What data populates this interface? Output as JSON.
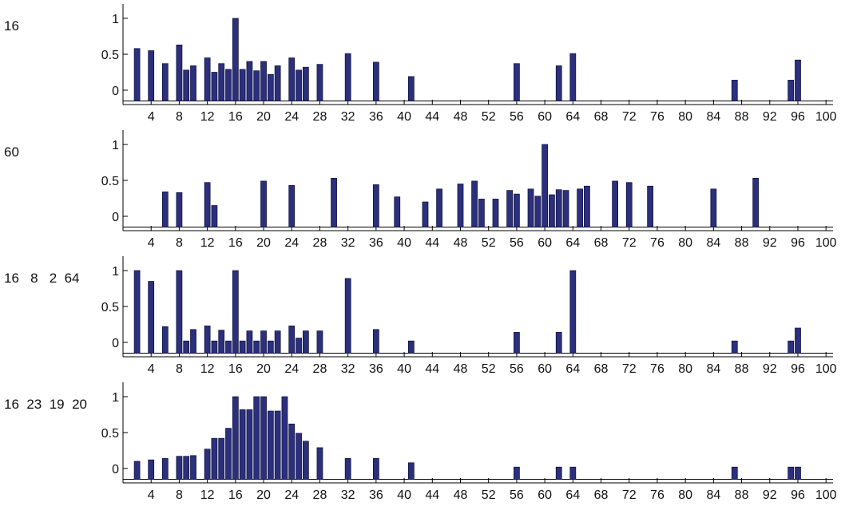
{
  "chart_data": [
    {
      "type": "bar",
      "label": "16",
      "xlim": [
        0,
        101
      ],
      "ylim": [
        -0.2,
        1.2
      ],
      "xticks": [
        4,
        8,
        12,
        16,
        20,
        24,
        28,
        32,
        36,
        40,
        44,
        48,
        52,
        56,
        60,
        64,
        68,
        72,
        76,
        80,
        84,
        88,
        92,
        96,
        100
      ],
      "yticks": [
        0,
        0.5,
        1
      ],
      "ytick_labels": [
        "0",
        "0.5",
        "1"
      ],
      "baseline": -0.15,
      "x": [
        2,
        4,
        6,
        8,
        9,
        10,
        12,
        13,
        14,
        15,
        16,
        17,
        18,
        19,
        20,
        21,
        22,
        24,
        25,
        26,
        28,
        32,
        36,
        41,
        56,
        62,
        64,
        87,
        95,
        96
      ],
      "values": [
        0.58,
        0.55,
        0.37,
        0.63,
        0.28,
        0.34,
        0.45,
        0.25,
        0.37,
        0.29,
        1.0,
        0.29,
        0.4,
        0.27,
        0.4,
        0.22,
        0.34,
        0.45,
        0.28,
        0.32,
        0.36,
        0.51,
        0.39,
        0.19,
        0.37,
        0.34,
        0.51,
        0.14,
        0.14,
        0.42
      ]
    },
    {
      "type": "bar",
      "label": "60",
      "xlim": [
        0,
        101
      ],
      "ylim": [
        -0.2,
        1.2
      ],
      "xticks": [
        4,
        8,
        12,
        16,
        20,
        24,
        28,
        32,
        36,
        40,
        44,
        48,
        52,
        56,
        60,
        64,
        68,
        72,
        76,
        80,
        84,
        88,
        92,
        96,
        100
      ],
      "yticks": [
        0,
        0.5,
        1
      ],
      "ytick_labels": [
        "0",
        "0.5",
        "1"
      ],
      "baseline": -0.15,
      "x": [
        6,
        8,
        12,
        13,
        20,
        24,
        30,
        36,
        39,
        43,
        45,
        48,
        50,
        51,
        53,
        55,
        56,
        58,
        59,
        60,
        61,
        62,
        63,
        65,
        66,
        70,
        72,
        75,
        84,
        90
      ],
      "values": [
        0.34,
        0.33,
        0.47,
        0.15,
        0.49,
        0.43,
        0.53,
        0.44,
        0.27,
        0.2,
        0.38,
        0.45,
        0.49,
        0.24,
        0.24,
        0.36,
        0.31,
        0.38,
        0.28,
        1.0,
        0.3,
        0.37,
        0.36,
        0.38,
        0.42,
        0.49,
        0.47,
        0.42,
        0.38,
        0.53
      ]
    },
    {
      "type": "bar",
      "label": "16   8   2  64",
      "xlim": [
        0,
        101
      ],
      "ylim": [
        -0.2,
        1.2
      ],
      "xticks": [
        4,
        8,
        12,
        16,
        20,
        24,
        28,
        32,
        36,
        40,
        44,
        48,
        52,
        56,
        60,
        64,
        68,
        72,
        76,
        80,
        84,
        88,
        92,
        96,
        100
      ],
      "yticks": [
        0,
        0.5,
        1
      ],
      "ytick_labels": [
        "0",
        "0.5",
        "1"
      ],
      "baseline": -0.15,
      "x": [
        2,
        4,
        6,
        8,
        9,
        10,
        12,
        13,
        14,
        15,
        16,
        17,
        18,
        19,
        20,
        21,
        22,
        24,
        25,
        26,
        28,
        32,
        36,
        41,
        56,
        62,
        64,
        87,
        95,
        96
      ],
      "values": [
        1.0,
        0.85,
        0.22,
        1.0,
        0.02,
        0.18,
        0.23,
        0.02,
        0.17,
        0.02,
        1.0,
        0.02,
        0.16,
        0.02,
        0.16,
        0.02,
        0.16,
        0.23,
        0.06,
        0.16,
        0.16,
        0.89,
        0.18,
        0.02,
        0.14,
        0.14,
        1.0,
        0.02,
        0.02,
        0.2
      ]
    },
    {
      "type": "bar",
      "label": "16  23  19  20",
      "xlim": [
        0,
        101
      ],
      "ylim": [
        -0.2,
        1.2
      ],
      "xticks": [
        4,
        8,
        12,
        16,
        20,
        24,
        28,
        32,
        36,
        40,
        44,
        48,
        52,
        56,
        60,
        64,
        68,
        72,
        76,
        80,
        84,
        88,
        92,
        96,
        100
      ],
      "yticks": [
        0,
        0.5,
        1
      ],
      "ytick_labels": [
        "0",
        "0.5",
        "1"
      ],
      "baseline": -0.15,
      "x": [
        2,
        4,
        6,
        8,
        9,
        10,
        12,
        13,
        14,
        15,
        16,
        17,
        18,
        19,
        20,
        21,
        22,
        23,
        24,
        25,
        26,
        28,
        32,
        36,
        41,
        56,
        62,
        64,
        87,
        95,
        96
      ],
      "values": [
        0.1,
        0.12,
        0.14,
        0.17,
        0.17,
        0.18,
        0.27,
        0.42,
        0.42,
        0.56,
        1.0,
        0.82,
        0.82,
        1.0,
        1.0,
        0.8,
        0.8,
        1.0,
        0.62,
        0.49,
        0.38,
        0.29,
        0.14,
        0.14,
        0.08,
        0.02,
        0.02,
        0.02,
        0.02,
        0.02,
        0.02
      ]
    }
  ]
}
